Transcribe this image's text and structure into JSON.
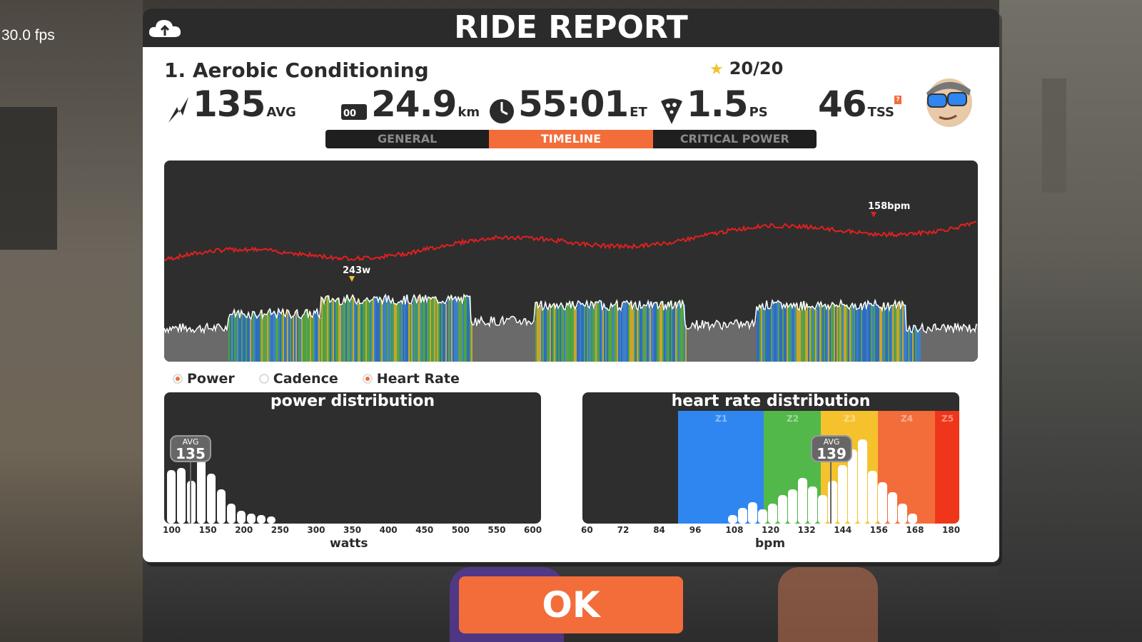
{
  "overlay": {
    "fps": "30.0 fps"
  },
  "modal": {
    "title": "RIDE REPORT",
    "cloud_icon": "cloud-upload-icon"
  },
  "workout": {
    "name": "1. Aerobic Conditioning",
    "rating": "20/20"
  },
  "stats": {
    "power": {
      "value": "135",
      "unit": "AVG",
      "icon": "lightning-icon"
    },
    "distance": {
      "value": "24.9",
      "unit": "km",
      "icon": "odometer-icon"
    },
    "time": {
      "value": "55:01",
      "unit": "ET",
      "icon": "clock-icon"
    },
    "pizza": {
      "value": "1.5",
      "unit": "PS",
      "icon": "pizza-icon"
    },
    "tss": {
      "value": "46",
      "unit": "TSS",
      "icon": "avatar-icon"
    }
  },
  "tabs": [
    {
      "label": "GENERAL",
      "active": false
    },
    {
      "label": "TIMELINE",
      "active": true
    },
    {
      "label": "CRITICAL POWER",
      "active": false
    }
  ],
  "timeline": {
    "hr_peak_label": "158bpm",
    "power_peak_label": "243w"
  },
  "legend": [
    {
      "label": "Power",
      "selected": true
    },
    {
      "label": "Cadence",
      "selected": false
    },
    {
      "label": "Heart Rate",
      "selected": true
    }
  ],
  "power_distribution": {
    "title": "power distribution",
    "ticks": [
      "100",
      "150",
      "200",
      "250",
      "300",
      "350",
      "400",
      "450",
      "500",
      "550",
      "600"
    ],
    "xlabel": "watts",
    "avg_label": "AVG",
    "avg_value": "135"
  },
  "hr_distribution": {
    "title": "heart rate distribution",
    "ticks": [
      "60",
      "72",
      "84",
      "96",
      "108",
      "120",
      "132",
      "144",
      "156",
      "168",
      "180"
    ],
    "xlabel": "bpm",
    "avg_label": "AVG",
    "avg_value": "139",
    "zones": [
      "Z1",
      "Z2",
      "Z3",
      "Z4",
      "Z5"
    ]
  },
  "ok_button": {
    "label": "OK"
  },
  "colors": {
    "accent": "#f26d3a",
    "hr_line": "#e02020",
    "z1": "#2f86f0",
    "z2": "#52b84a",
    "z3": "#f5c22e",
    "z4": "#f26d3a",
    "z5": "#f0361a"
  }
}
